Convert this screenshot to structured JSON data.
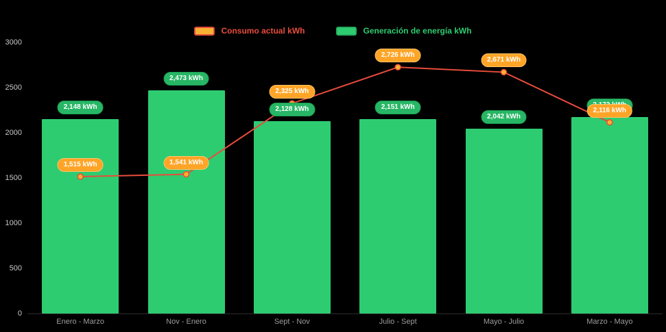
{
  "legend": {
    "items": [
      {
        "label": "Consumo actual kWh",
        "text_color": "#e74c3c",
        "swatch_fill": "#f8b133",
        "swatch_border": "#e74c3c"
      },
      {
        "label": "Generación de energía kWh",
        "text_color": "#2ecc71",
        "swatch_fill": "#2ecc71",
        "swatch_border": "#27ae60"
      }
    ]
  },
  "axes": {
    "ytick_labels": [
      "3000",
      "2500",
      "2000",
      "1500",
      "1000",
      "500",
      "0"
    ],
    "ytick_values": [
      3000,
      2500,
      2000,
      1500,
      1000,
      500,
      0
    ]
  },
  "chart_data": {
    "type": "bar+line",
    "categories": [
      "Enero - Marzo",
      "Nov - Enero",
      "Sept - Nov",
      "Julio - Sept",
      "Mayo - Julio",
      "Marzo - Mayo"
    ],
    "series": [
      {
        "name": "Generación de energía kWh",
        "type": "bar",
        "color": "#2ecc71",
        "values": [
          2148,
          2473,
          2128,
          2151,
          2042,
          2173
        ],
        "labels": [
          "2,148 kWh",
          "2,473 kWh",
          "2,128 kWh",
          "2,151 kWh",
          "2,042 kWh",
          "2,173 kWh"
        ]
      },
      {
        "name": "Consumo actual kWh",
        "type": "line",
        "color": "#e74c3c",
        "marker_fill": "#ffb02e",
        "values": [
          1515,
          1541,
          2325,
          2726,
          2671,
          2116
        ],
        "labels": [
          "1,515 kWh",
          "1,541 kWh",
          "2,325 kWh",
          "2,726 kWh",
          "2,671 kWh",
          "2,116 kWh"
        ]
      }
    ],
    "ylim": [
      0,
      3000
    ],
    "yticks": [
      0,
      500,
      1000,
      1500,
      2000,
      2500,
      3000
    ],
    "grid": false,
    "legend_position": "top",
    "background": "#000000"
  }
}
